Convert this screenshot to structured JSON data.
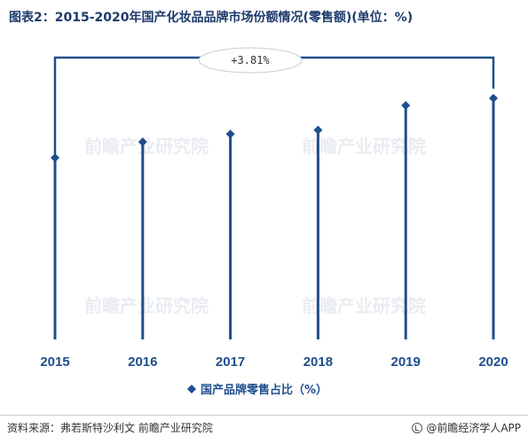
{
  "title": "图表2：2015-2020年国产化妆品品牌市场份额情况(零售额)(单位：%)",
  "source": "资料来源：弗若斯特沙利文 前瞻产业研究院",
  "brand": "@前瞻经济学人APP",
  "watermark": "前瞻产业研究院",
  "colors": {
    "series": "#1f4e8c",
    "title": "#1e3a6b"
  },
  "chart_data": {
    "type": "line",
    "style": "lollipop",
    "title": "图表2：2015-2020年国产化妆品品牌市场份额情况(零售额)(单位：%)",
    "xlabel": "",
    "ylabel": "",
    "categories": [
      "2015",
      "2016",
      "2017",
      "2018",
      "2019",
      "2020"
    ],
    "series": [
      {
        "name": "国产品牌零售占比（%）",
        "values": [
          22.9,
          24.9,
          25.9,
          26.4,
          29.5,
          30.4
        ]
      }
    ],
    "ylim": [
      0,
      40
    ],
    "grid": false,
    "legend": "bottom-center",
    "annotations": [
      {
        "text": "+3.81%",
        "from": "2015",
        "to": "2020"
      }
    ]
  }
}
